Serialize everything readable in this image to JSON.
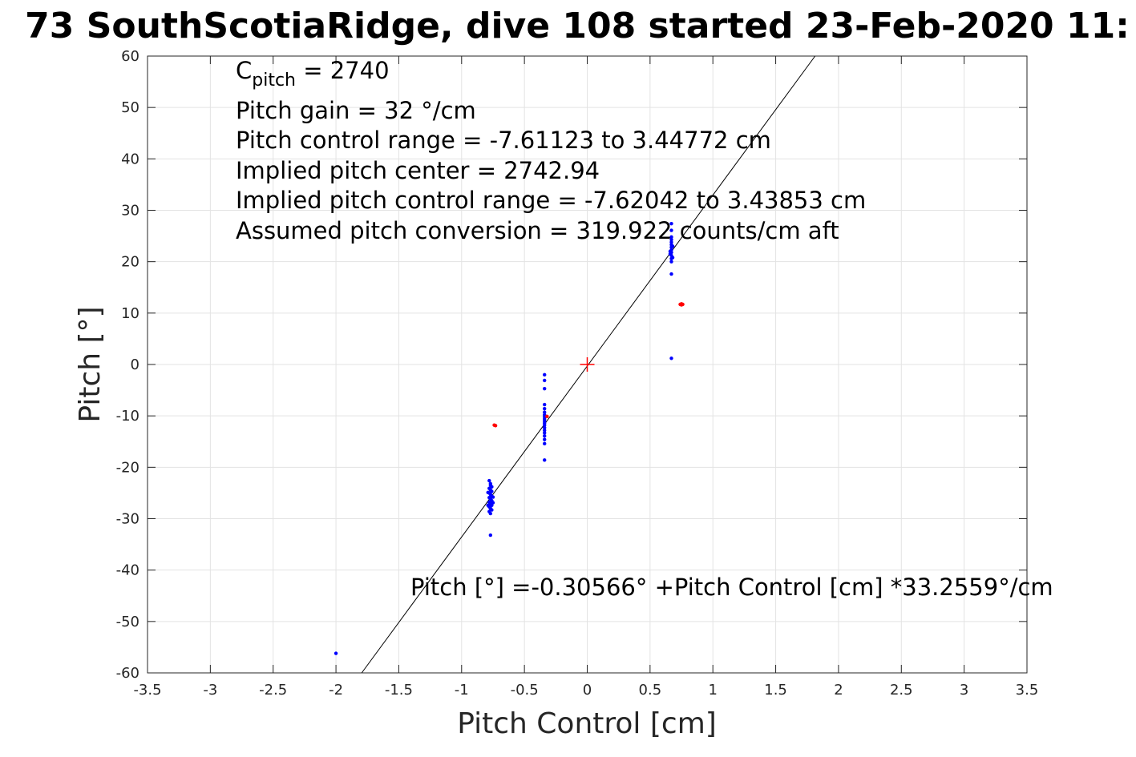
{
  "chart_data": {
    "type": "scatter",
    "title": "73 SouthScotiaRidge, dive 108 started 23-Feb-2020 11:",
    "xlabel": "Pitch Control [cm]",
    "ylabel": "Pitch [°]",
    "xlim": [
      -3.5,
      3.5
    ],
    "ylim": [
      -60,
      60
    ],
    "xticks": [
      -3.5,
      -3,
      -2.5,
      -2,
      -1.5,
      -1,
      -0.5,
      0,
      0.5,
      1,
      1.5,
      2,
      2.5,
      3,
      3.5
    ],
    "yticks": [
      -60,
      -50,
      -40,
      -30,
      -20,
      -10,
      0,
      10,
      20,
      30,
      40,
      50,
      60
    ],
    "xtick_labels": [
      "-3.5",
      "-3",
      "-2.5",
      "-2",
      "-1.5",
      "-1",
      "-0.5",
      "0",
      "0.5",
      "1",
      "1.5",
      "2",
      "2.5",
      "3",
      "3.5"
    ],
    "ytick_labels": [
      "-60",
      "-50",
      "-40",
      "-30",
      "-20",
      "-10",
      "0",
      "10",
      "20",
      "30",
      "40",
      "50",
      "60"
    ],
    "grid": true,
    "annotations": {
      "cpitch_main": "C",
      "cpitch_sub": "pitch",
      "cpitch_rest": " = 2740",
      "pitch_gain": "Pitch gain = 32 °/cm",
      "control_range": "Pitch control range = -7.61123 to 3.44772 cm",
      "implied_center": "Implied pitch center = 2742.94",
      "implied_range": "Implied pitch control range = -7.62042 to 3.43853 cm",
      "assumed_conversion": "Assumed pitch conversion = 319.922 counts/cm aft",
      "fit_equation": "Pitch [°] =-0.30566° +Pitch Control [cm] *33.2559°/cm"
    },
    "fit_line": {
      "intercept": -0.30566,
      "slope": 33.2559,
      "color": "#000000"
    },
    "center_marker": {
      "x": 0,
      "y": 0,
      "color": "#ff0000",
      "symbol": "plus"
    },
    "series": [
      {
        "color": "#0000ff",
        "points": [
          [
            -2.0,
            -56.2
          ],
          [
            -0.77,
            -33.2
          ],
          [
            -0.77,
            -29.0
          ],
          [
            -0.78,
            -28.6
          ],
          [
            -0.76,
            -28.3
          ],
          [
            -0.77,
            -28.0
          ],
          [
            -0.78,
            -27.7
          ],
          [
            -0.76,
            -27.4
          ],
          [
            -0.77,
            -27.1
          ],
          [
            -0.78,
            -26.8
          ],
          [
            -0.76,
            -26.5
          ],
          [
            -0.77,
            -26.2
          ],
          [
            -0.78,
            -25.9
          ],
          [
            -0.76,
            -25.6
          ],
          [
            -0.77,
            -25.3
          ],
          [
            -0.78,
            -25.0
          ],
          [
            -0.76,
            -24.7
          ],
          [
            -0.77,
            -24.4
          ],
          [
            -0.78,
            -24.1
          ],
          [
            -0.76,
            -23.8
          ],
          [
            -0.77,
            -23.5
          ],
          [
            -0.77,
            -23.2
          ],
          [
            -0.78,
            -22.6
          ],
          [
            -0.79,
            -27.4
          ],
          [
            -0.75,
            -25.8
          ],
          [
            -0.79,
            -24.9
          ],
          [
            -0.75,
            -26.9
          ],
          [
            -0.34,
            -18.6
          ],
          [
            -0.34,
            -15.4
          ],
          [
            -0.34,
            -14.6
          ],
          [
            -0.34,
            -13.9
          ],
          [
            -0.34,
            -13.3
          ],
          [
            -0.34,
            -12.8
          ],
          [
            -0.34,
            -12.3
          ],
          [
            -0.34,
            -11.8
          ],
          [
            -0.34,
            -11.4
          ],
          [
            -0.34,
            -11.0
          ],
          [
            -0.34,
            -10.6
          ],
          [
            -0.34,
            -10.2
          ],
          [
            -0.34,
            -9.8
          ],
          [
            -0.34,
            -9.3
          ],
          [
            -0.34,
            -8.6
          ],
          [
            -0.34,
            -7.8
          ],
          [
            -0.34,
            -4.7
          ],
          [
            -0.34,
            -3.1
          ],
          [
            -0.34,
            -2.0
          ],
          [
            0.67,
            1.2
          ],
          [
            0.67,
            17.6
          ],
          [
            0.67,
            20.0
          ],
          [
            0.67,
            20.6
          ],
          [
            0.67,
            21.2
          ],
          [
            0.67,
            21.8
          ],
          [
            0.67,
            22.3
          ],
          [
            0.67,
            22.8
          ],
          [
            0.67,
            23.3
          ],
          [
            0.67,
            23.8
          ],
          [
            0.67,
            24.3
          ],
          [
            0.67,
            24.8
          ],
          [
            0.67,
            26.1
          ],
          [
            0.67,
            27.4
          ],
          [
            0.66,
            22.0
          ],
          [
            0.68,
            23.0
          ],
          [
            0.66,
            21.5
          ],
          [
            0.68,
            20.8
          ]
        ]
      },
      {
        "color": "#ff0000",
        "points": [
          [
            -0.74,
            -11.8
          ],
          [
            -0.73,
            -11.9
          ],
          [
            -0.32,
            -10.1
          ],
          [
            0.74,
            11.7
          ],
          [
            0.75,
            11.8
          ],
          [
            0.76,
            11.7
          ],
          [
            0.75,
            11.6
          ]
        ]
      }
    ]
  }
}
